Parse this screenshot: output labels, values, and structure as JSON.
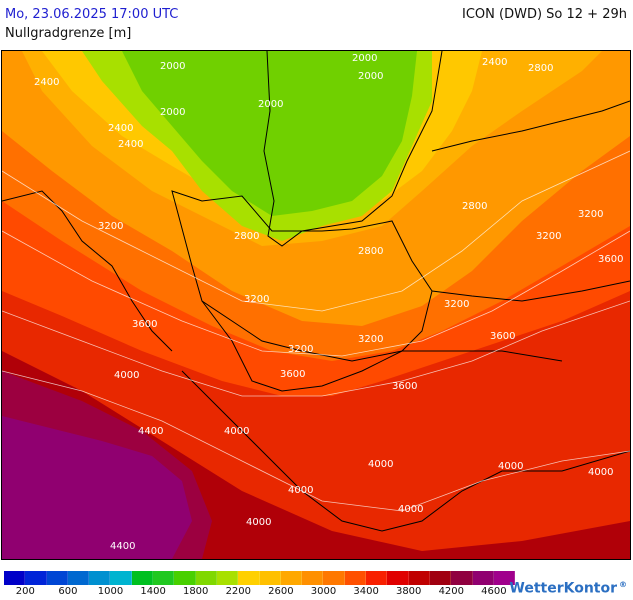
{
  "header": {
    "datetime": "Mo, 23.06.2025 17:00 UTC",
    "model": "ICON (DWD) So 12 + 29h",
    "parameter": "Nullgradgrenze [m]"
  },
  "map": {
    "contour_labels": [
      "2000",
      "2000",
      "2000",
      "2000",
      "2000",
      "2400",
      "2400",
      "2400",
      "2400",
      "2800",
      "2800",
      "2800",
      "2800",
      "3200",
      "3200",
      "3200",
      "3200",
      "3200",
      "3200",
      "3200",
      "3600",
      "3600",
      "3600",
      "3600",
      "3600",
      "4000",
      "4000",
      "4000",
      "4000",
      "4000",
      "4000",
      "4000",
      "4000",
      "4400",
      "4400"
    ]
  },
  "legend": {
    "colors": [
      "#0000c8",
      "#0024d8",
      "#0046d4",
      "#0068d0",
      "#0090d0",
      "#00b4d0",
      "#00c020",
      "#20c820",
      "#48d000",
      "#80d800",
      "#a8e000",
      "#ffd000",
      "#ffc000",
      "#ffa800",
      "#ff9000",
      "#ff7800",
      "#ff5000",
      "#f82000",
      "#e00000",
      "#c00000",
      "#a00010",
      "#900040",
      "#900070",
      "#a0008c"
    ],
    "labels": [
      "200",
      "600",
      "1000",
      "1400",
      "1800",
      "2200",
      "2600",
      "3000",
      "3400",
      "3800",
      "4200",
      "4600"
    ]
  },
  "brand": {
    "name": "WetterKontor",
    "mark": "®"
  }
}
